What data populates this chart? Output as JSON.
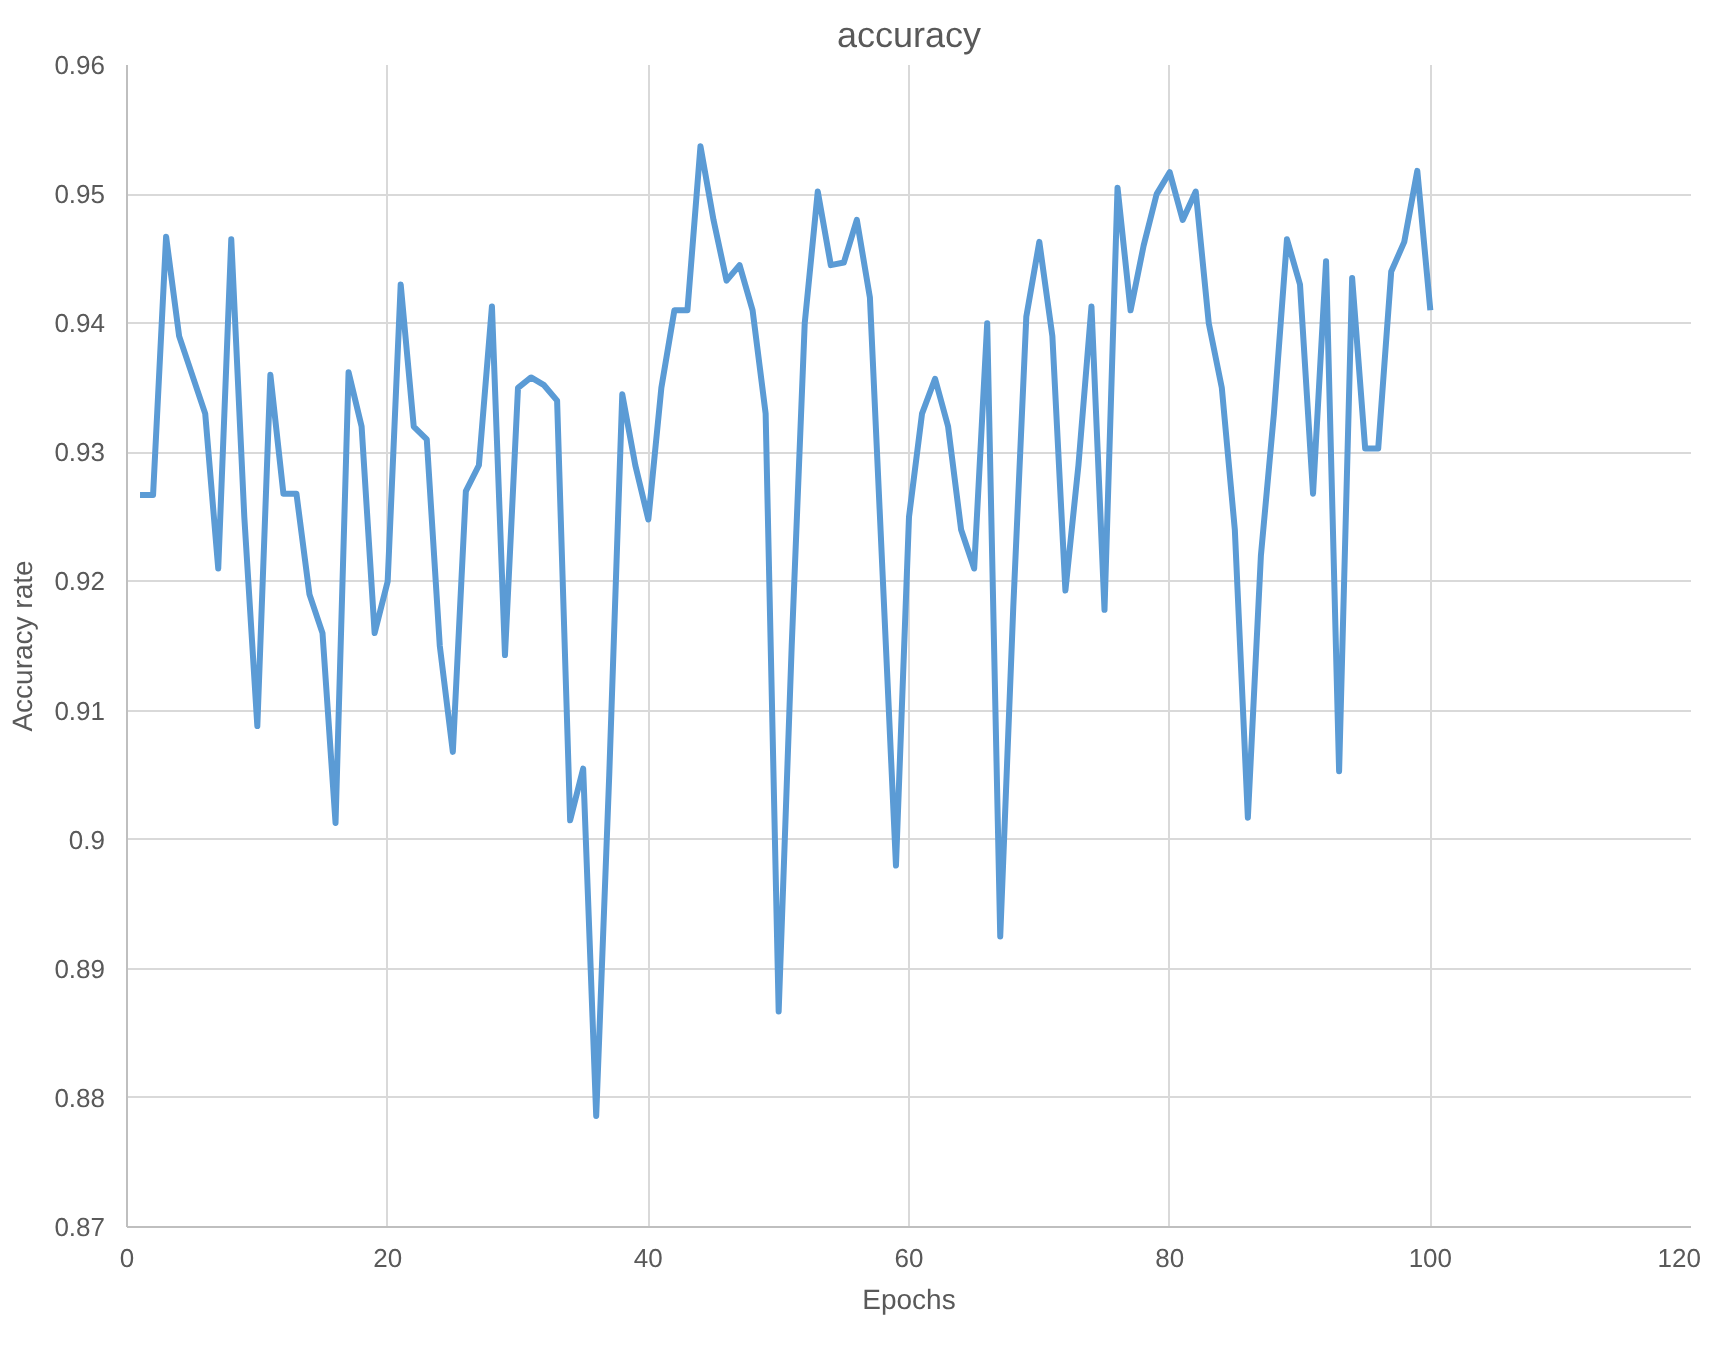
{
  "chart_data": {
    "type": "line",
    "title": "accuracy",
    "xlabel": "Epochs",
    "ylabel": "Accuracy rate",
    "x": [
      1,
      2,
      3,
      4,
      5,
      6,
      7,
      8,
      9,
      10,
      11,
      12,
      13,
      14,
      15,
      16,
      17,
      18,
      19,
      20,
      21,
      22,
      23,
      24,
      25,
      26,
      27,
      28,
      29,
      30,
      31,
      32,
      33,
      34,
      35,
      36,
      37,
      38,
      39,
      40,
      41,
      42,
      43,
      44,
      45,
      46,
      47,
      48,
      49,
      50,
      51,
      52,
      53,
      54,
      55,
      56,
      57,
      58,
      59,
      60,
      61,
      62,
      63,
      64,
      65,
      66,
      67,
      68,
      69,
      70,
      71,
      72,
      73,
      74,
      75,
      76,
      77,
      78,
      79,
      80,
      81,
      82,
      83,
      84,
      85,
      86,
      87,
      88,
      89,
      90,
      91,
      92,
      93,
      94,
      95,
      96,
      97,
      98,
      99,
      100
    ],
    "series": [
      {
        "color": "#5b9bd5",
        "values": [
          0.9267,
          0.9267,
          0.9467,
          0.939,
          0.936,
          0.933,
          0.921,
          0.9465,
          0.925,
          0.9088,
          0.936,
          0.9268,
          0.9268,
          0.919,
          0.916,
          0.9013,
          0.9362,
          0.932,
          0.916,
          0.92,
          0.943,
          0.932,
          0.931,
          0.915,
          0.9068,
          0.927,
          0.929,
          0.9413,
          0.9143,
          0.935,
          0.9358,
          0.9352,
          0.934,
          0.9015,
          0.9055,
          0.8786,
          0.905,
          0.9345,
          0.929,
          0.9248,
          0.935,
          0.941,
          0.941,
          0.9537,
          0.948,
          0.9433,
          0.9445,
          0.941,
          0.933,
          0.8867,
          0.915,
          0.94,
          0.9502,
          0.9445,
          0.9447,
          0.948,
          0.942,
          0.92,
          0.898,
          0.925,
          0.933,
          0.9357,
          0.932,
          0.924,
          0.921,
          0.94,
          0.8925,
          0.918,
          0.9405,
          0.9463,
          0.939,
          0.9193,
          0.929,
          0.9413,
          0.9178,
          0.9505,
          0.941,
          0.946,
          0.95,
          0.9517,
          0.948,
          0.9502,
          0.94,
          0.935,
          0.924,
          0.9017,
          0.922,
          0.933,
          0.9465,
          0.943,
          0.9268,
          0.9448,
          0.9053,
          0.9435,
          0.9303,
          0.9303,
          0.944,
          0.9463,
          0.9518,
          0.941
        ]
      }
    ],
    "xlim": [
      0,
      120
    ],
    "xticks": [
      0,
      20,
      40,
      60,
      80,
      100,
      120
    ],
    "ylim": [
      0.87,
      0.96
    ],
    "yticks": [
      0.87,
      0.88,
      0.89,
      0.9,
      0.91,
      0.92,
      0.93,
      0.94,
      0.95,
      0.96
    ],
    "grid": true,
    "marker": "none",
    "line_style": "solid"
  }
}
